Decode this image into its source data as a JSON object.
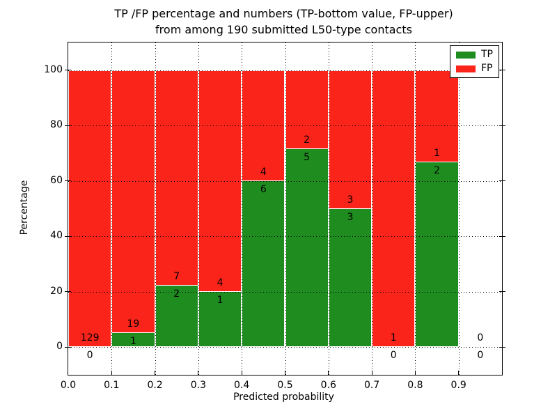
{
  "figure": {
    "title_line1": "TP /FP percentage and numbers (TP-bottom value, FP-upper)",
    "title_line2": "from among 190 submitted L50-type contacts",
    "xlabel": "Predicted probability",
    "ylabel": "Percentage"
  },
  "legend": {
    "items": [
      {
        "label": "TP",
        "color": "#1f8c1f"
      },
      {
        "label": "FP",
        "color": "#fa241a"
      }
    ]
  },
  "colors": {
    "tp": "#1f8c1f",
    "fp": "#fa241a",
    "bar_edge": "#ffffff",
    "grid": "#000000",
    "axis": "#000000",
    "background": "#ffffff"
  },
  "chart_data": {
    "type": "bar",
    "subtype": "stacked-percentage-histogram",
    "title": "TP /FP percentage and numbers (TP-bottom value, FP-upper) from among 190 submitted L50-type contacts",
    "xlabel": "Predicted probability",
    "ylabel": "Percentage",
    "total_contacts": 190,
    "xlim": [
      0.0,
      1.0
    ],
    "ylim": [
      -10,
      110
    ],
    "bin_width": 0.1,
    "bin_starts": [
      0.0,
      0.1,
      0.2,
      0.3,
      0.4,
      0.5,
      0.6,
      0.7,
      0.8,
      0.9
    ],
    "x_tick_labels": [
      "0.0",
      "0.1",
      "0.2",
      "0.3",
      "0.4",
      "0.5",
      "0.6",
      "0.7",
      "0.8",
      "0.9"
    ],
    "y_tick_labels": [
      "0",
      "20",
      "40",
      "60",
      "80",
      "100"
    ],
    "grid": true,
    "legend_position": "upper right",
    "series": [
      {
        "name": "TP",
        "color": "#1f8c1f",
        "counts": [
          0,
          1,
          2,
          1,
          6,
          5,
          3,
          0,
          2,
          0
        ]
      },
      {
        "name": "FP",
        "color": "#fa241a",
        "counts": [
          129,
          19,
          7,
          4,
          4,
          2,
          3,
          1,
          1,
          0
        ]
      }
    ],
    "tp_percent": [
      0,
      5,
      22.2,
      20,
      60,
      71.4,
      50,
      0,
      66.7,
      null
    ]
  }
}
